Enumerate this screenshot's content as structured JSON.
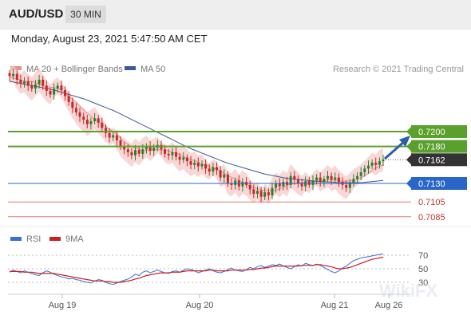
{
  "header": {
    "symbol": "AUD/USD",
    "timeframe": "30 MIN",
    "datetime": "Monday, August 23, 2021 5:47:50 AM CET"
  },
  "legend": {
    "ma20_bb": "MA 20 + Bollinger Bands",
    "ma50": "MA 50",
    "credit": "Research © 2021 Trading Central",
    "rsi": "RSI",
    "rsi_ma": "9MA"
  },
  "watermark": "WikiFX",
  "colors": {
    "resistance": "#5aa02c",
    "support": "#2a66c9",
    "support_weak": "#e07a74",
    "up_candle": "#2e7d32",
    "down_candle": "#c62828",
    "ma50": "#3a5a9a",
    "bollinger": "#f8c9c9",
    "rsi": "#3b6fd6",
    "rsi_ma": "#cc1f1f",
    "arrow": "#2a5fa8",
    "last_price_bg": "#333333"
  },
  "chart_data": [
    {
      "type": "candlestick",
      "title": "AUD/USD",
      "xlabel": "",
      "ylabel": "",
      "x_ticks": [
        "Aug 19",
        "Aug 20",
        "Aug 21",
        "Aug 26"
      ],
      "ylim": [
        0.7078,
        0.7225
      ],
      "last_price": 0.7162,
      "levels": [
        {
          "value": 0.72,
          "label": "0.7200",
          "kind": "resistance"
        },
        {
          "value": 0.718,
          "label": "0.7180",
          "kind": "resistance"
        },
        {
          "value": 0.713,
          "label": "0.7130",
          "kind": "support"
        },
        {
          "value": 0.7105,
          "label": "0.7105",
          "kind": "support_weak"
        },
        {
          "value": 0.7085,
          "label": "0.7085",
          "kind": "support_weak"
        }
      ],
      "close": [
        0.7275,
        0.7278,
        0.727,
        0.7265,
        0.7268,
        0.7262,
        0.7258,
        0.7264,
        0.727,
        0.7262,
        0.7255,
        0.725,
        0.7258,
        0.7262,
        0.7256,
        0.7248,
        0.724,
        0.7232,
        0.7226,
        0.722,
        0.7216,
        0.721,
        0.7214,
        0.7218,
        0.7212,
        0.7205,
        0.7198,
        0.7192,
        0.7195,
        0.7188,
        0.718,
        0.7176,
        0.7172,
        0.7168,
        0.7175,
        0.717,
        0.7176,
        0.718,
        0.7174,
        0.7178,
        0.7182,
        0.7176,
        0.717,
        0.7168,
        0.7172,
        0.7166,
        0.7162,
        0.7165,
        0.716,
        0.7155,
        0.7158,
        0.7153,
        0.7156,
        0.715,
        0.7146,
        0.7152,
        0.7148,
        0.7138,
        0.7142,
        0.713,
        0.7128,
        0.7134,
        0.7126,
        0.7132,
        0.7128,
        0.7122,
        0.7116,
        0.712,
        0.7112,
        0.7118,
        0.7114,
        0.7124,
        0.713,
        0.7126,
        0.7132,
        0.7128,
        0.714,
        0.7135,
        0.713,
        0.7126,
        0.7133,
        0.7128,
        0.7134,
        0.7138,
        0.7132,
        0.7136,
        0.714,
        0.7135,
        0.7138,
        0.7132,
        0.7128,
        0.7124,
        0.713,
        0.7136,
        0.714,
        0.7145,
        0.715,
        0.7154,
        0.7158,
        0.7155,
        0.716,
        0.7162
      ],
      "ma50": [
        0.7268,
        0.7266,
        0.7264,
        0.7262,
        0.726,
        0.7258,
        0.7256,
        0.7253,
        0.725,
        0.7247,
        0.7244,
        0.724,
        0.7236,
        0.7232,
        0.7228,
        0.7223,
        0.7218,
        0.7213,
        0.7208,
        0.7203,
        0.7198,
        0.7193,
        0.7188,
        0.7183,
        0.7178,
        0.7174,
        0.717,
        0.7166,
        0.7162,
        0.7158,
        0.7155,
        0.7152,
        0.7149,
        0.7146,
        0.7143,
        0.7141,
        0.7139,
        0.7137,
        0.7136,
        0.7135,
        0.7134,
        0.7133,
        0.7132,
        0.7132,
        0.7131,
        0.7131,
        0.7131,
        0.7131,
        0.7132,
        0.7133,
        0.7134
      ],
      "rsi_axis": [
        70,
        50,
        30
      ],
      "rsi_ylim": [
        15,
        80
      ],
      "rsi": [
        45,
        48,
        46,
        44,
        47,
        45,
        43,
        41,
        40,
        44,
        47,
        45,
        42,
        40,
        38,
        37,
        35,
        36,
        34,
        33,
        31,
        30,
        29,
        32,
        34,
        33,
        30,
        28,
        27,
        29,
        31,
        33,
        35,
        38,
        42,
        40,
        45,
        47,
        44,
        46,
        48,
        46,
        44,
        43,
        46,
        47,
        45,
        48,
        50,
        49,
        47,
        44,
        46,
        48,
        50,
        47,
        45,
        44,
        46,
        49,
        51,
        48,
        47,
        46,
        49,
        52,
        50,
        53,
        55,
        52,
        54,
        56,
        55,
        57,
        54,
        52,
        50,
        53,
        56,
        54,
        58,
        56,
        55,
        57,
        55,
        52,
        49,
        46,
        44,
        47,
        51,
        54,
        58,
        62,
        64,
        66,
        67,
        68,
        69,
        70,
        71,
        72
      ],
      "rsi_ma": [
        46,
        46,
        46,
        46,
        45,
        45,
        45,
        44,
        43,
        43,
        43,
        43,
        43,
        42,
        41,
        40,
        39,
        38,
        37,
        36,
        35,
        34,
        33,
        32,
        32,
        32,
        31,
        31,
        30,
        30,
        30,
        31,
        32,
        33,
        35,
        36,
        38,
        40,
        41,
        42,
        43,
        44,
        44,
        44,
        45,
        45,
        45,
        46,
        47,
        47,
        47,
        47,
        47,
        47,
        48,
        48,
        47,
        47,
        47,
        47,
        48,
        48,
        48,
        48,
        48,
        49,
        49,
        50,
        51,
        51,
        52,
        53,
        54,
        54,
        54,
        54,
        54,
        54,
        54,
        55,
        55,
        55,
        55,
        56,
        56,
        55,
        54,
        53,
        51,
        50,
        50,
        51,
        52,
        54,
        56,
        58,
        60,
        62,
        64,
        65,
        66,
        67
      ]
    }
  ]
}
